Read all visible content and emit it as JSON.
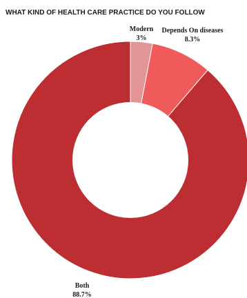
{
  "chart_data": {
    "type": "pie",
    "title": "WHAT KIND OF HEALTH CARE PRACTICE DO YOU FOLLOW",
    "categories": [
      "Modern",
      "Depends On diseases",
      "Both"
    ],
    "values": [
      3,
      8.3,
      88.7
    ],
    "value_labels": [
      "3%",
      "8.3%",
      "88.7%"
    ],
    "colors": [
      "#e39595",
      "#ef5a5a",
      "#bd2e32"
    ],
    "donut": true,
    "legend": "none"
  }
}
